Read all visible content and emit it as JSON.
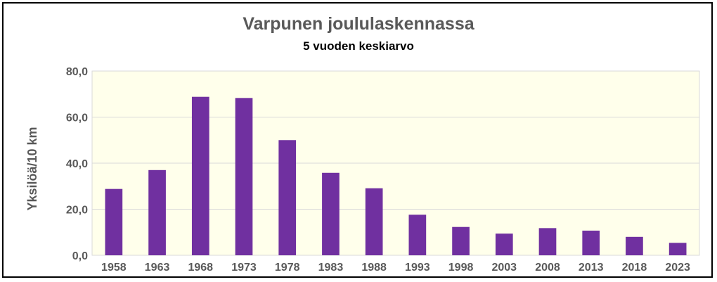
{
  "chart_data": {
    "type": "bar",
    "title": "Varpunen joululaskennassa",
    "subtitle": "5 vuoden keskiarvo",
    "ylabel": "Yksilöä/10 km",
    "xlabel": "",
    "categories": [
      "1958",
      "1963",
      "1968",
      "1973",
      "1978",
      "1983",
      "1988",
      "1993",
      "1998",
      "2003",
      "2008",
      "2013",
      "2018",
      "2023"
    ],
    "values": [
      28.8,
      37.0,
      68.8,
      68.3,
      50.0,
      35.8,
      29.1,
      17.6,
      12.3,
      9.4,
      11.8,
      10.7,
      8.0,
      5.4
    ],
    "ylim": [
      0,
      80
    ],
    "yticks": [
      0,
      20,
      40,
      60,
      80
    ],
    "ytick_labels": [
      "0,0",
      "20,0",
      "40,0",
      "60,0",
      "80,0"
    ],
    "grid": true,
    "legend": "none",
    "colors": {
      "bar": "#7030A0",
      "plot_background": "#FFFFEB",
      "gridline": "#D9D9D9",
      "text": "#595959"
    }
  }
}
